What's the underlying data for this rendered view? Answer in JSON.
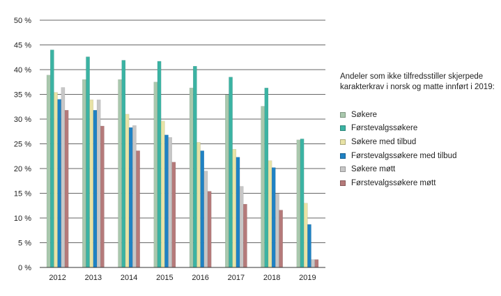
{
  "chart_data": {
    "type": "bar",
    "categories": [
      "2012",
      "2013",
      "2014",
      "2015",
      "2016",
      "2017",
      "2018",
      "2019"
    ],
    "ylim": [
      0,
      50
    ],
    "yticks": [
      "0 %",
      "5 %",
      "10 %",
      "15 %",
      "20 %",
      "25 %",
      "30 %",
      "35 %",
      "40 %",
      "45 %",
      "50 %"
    ],
    "grid": true,
    "legend_title": "Andeler som ikke tilfredsstiller skjerpede karakterkrav  i norsk og matte innført i 2019:",
    "legend_position": "right",
    "series": [
      {
        "name": "Søkere",
        "color": "#a9c8ad",
        "values": [
          38.9,
          38.0,
          38.0,
          37.5,
          36.3,
          34.9,
          32.6,
          25.8
        ]
      },
      {
        "name": "Førstevalgssøkere",
        "color": "#3bb3a3",
        "values": [
          44.0,
          42.6,
          41.9,
          41.7,
          40.7,
          38.5,
          36.3,
          26.0
        ]
      },
      {
        "name": "Søkere med tilbud",
        "color": "#e8e3a6",
        "values": [
          35.4,
          33.9,
          31.0,
          29.6,
          25.3,
          23.9,
          21.6,
          13.0
        ]
      },
      {
        "name": "Førstevalgssøkere med tilbud",
        "color": "#1f82c4",
        "values": [
          34.0,
          31.8,
          28.3,
          26.8,
          23.6,
          22.3,
          20.2,
          8.7
        ]
      },
      {
        "name": "Søkere møtt",
        "color": "#c7c7c7",
        "values": [
          36.4,
          33.9,
          28.7,
          26.3,
          19.5,
          16.4,
          14.9,
          1.6
        ]
      },
      {
        "name": "Førstevalgssøkere møtt",
        "color": "#b57a7a",
        "values": [
          31.8,
          28.6,
          23.6,
          21.3,
          15.4,
          12.8,
          11.6,
          1.6
        ]
      }
    ]
  }
}
